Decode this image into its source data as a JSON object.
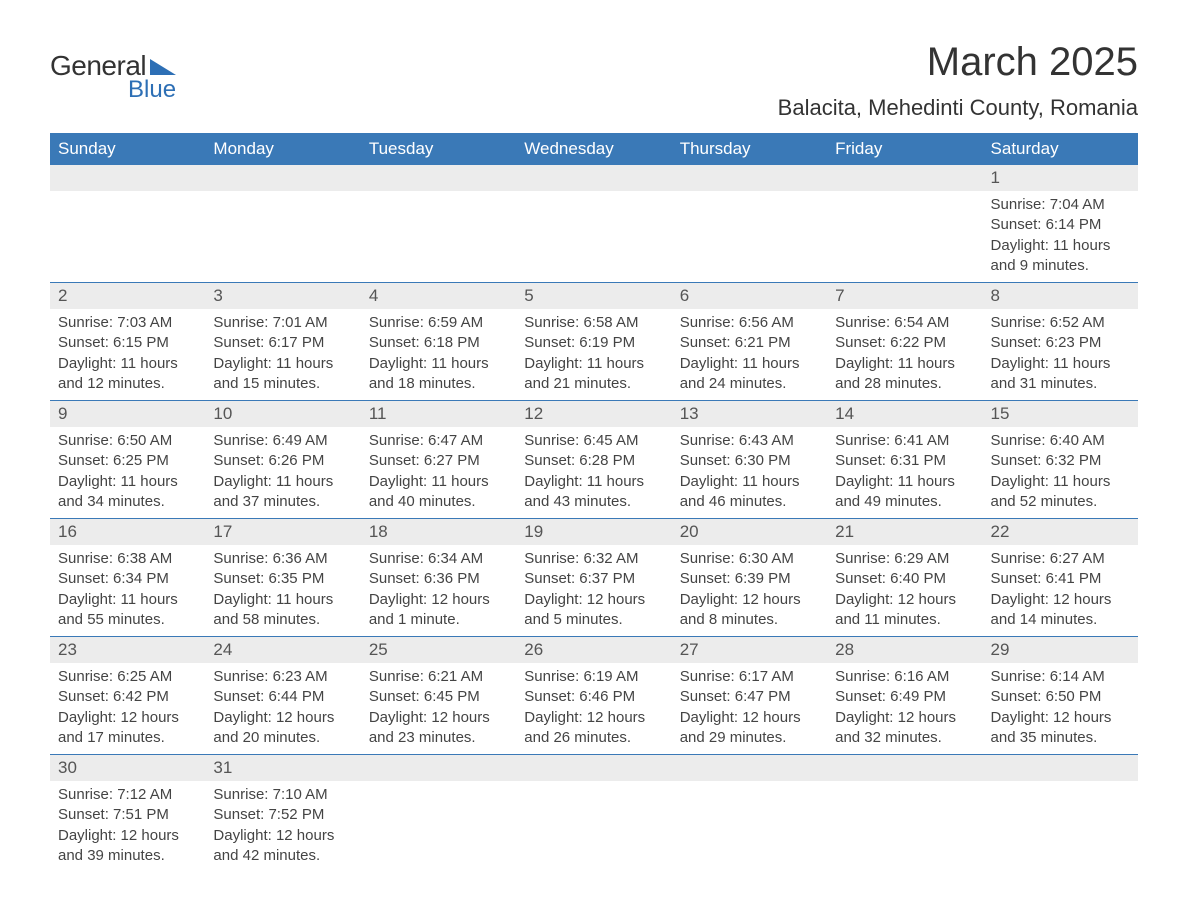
{
  "logo": {
    "text1": "General",
    "text2": "Blue",
    "triangle_color": "#2d6fb5"
  },
  "title": "March 2025",
  "location": "Balacita, Mehedinti County, Romania",
  "colors": {
    "header_bg": "#3a79b7",
    "header_text": "#ffffff",
    "daynum_bg": "#ececec",
    "border": "#3a79b7",
    "text": "#444444"
  },
  "typography": {
    "title_fontsize": 40,
    "location_fontsize": 22,
    "header_fontsize": 17,
    "daynum_fontsize": 17,
    "body_fontsize": 15
  },
  "headers": [
    "Sunday",
    "Monday",
    "Tuesday",
    "Wednesday",
    "Thursday",
    "Friday",
    "Saturday"
  ],
  "weeks": [
    [
      null,
      null,
      null,
      null,
      null,
      null,
      {
        "n": "1",
        "sunrise": "Sunrise: 7:04 AM",
        "sunset": "Sunset: 6:14 PM",
        "daylight": "Daylight: 11 hours and 9 minutes."
      }
    ],
    [
      {
        "n": "2",
        "sunrise": "Sunrise: 7:03 AM",
        "sunset": "Sunset: 6:15 PM",
        "daylight": "Daylight: 11 hours and 12 minutes."
      },
      {
        "n": "3",
        "sunrise": "Sunrise: 7:01 AM",
        "sunset": "Sunset: 6:17 PM",
        "daylight": "Daylight: 11 hours and 15 minutes."
      },
      {
        "n": "4",
        "sunrise": "Sunrise: 6:59 AM",
        "sunset": "Sunset: 6:18 PM",
        "daylight": "Daylight: 11 hours and 18 minutes."
      },
      {
        "n": "5",
        "sunrise": "Sunrise: 6:58 AM",
        "sunset": "Sunset: 6:19 PM",
        "daylight": "Daylight: 11 hours and 21 minutes."
      },
      {
        "n": "6",
        "sunrise": "Sunrise: 6:56 AM",
        "sunset": "Sunset: 6:21 PM",
        "daylight": "Daylight: 11 hours and 24 minutes."
      },
      {
        "n": "7",
        "sunrise": "Sunrise: 6:54 AM",
        "sunset": "Sunset: 6:22 PM",
        "daylight": "Daylight: 11 hours and 28 minutes."
      },
      {
        "n": "8",
        "sunrise": "Sunrise: 6:52 AM",
        "sunset": "Sunset: 6:23 PM",
        "daylight": "Daylight: 11 hours and 31 minutes."
      }
    ],
    [
      {
        "n": "9",
        "sunrise": "Sunrise: 6:50 AM",
        "sunset": "Sunset: 6:25 PM",
        "daylight": "Daylight: 11 hours and 34 minutes."
      },
      {
        "n": "10",
        "sunrise": "Sunrise: 6:49 AM",
        "sunset": "Sunset: 6:26 PM",
        "daylight": "Daylight: 11 hours and 37 minutes."
      },
      {
        "n": "11",
        "sunrise": "Sunrise: 6:47 AM",
        "sunset": "Sunset: 6:27 PM",
        "daylight": "Daylight: 11 hours and 40 minutes."
      },
      {
        "n": "12",
        "sunrise": "Sunrise: 6:45 AM",
        "sunset": "Sunset: 6:28 PM",
        "daylight": "Daylight: 11 hours and 43 minutes."
      },
      {
        "n": "13",
        "sunrise": "Sunrise: 6:43 AM",
        "sunset": "Sunset: 6:30 PM",
        "daylight": "Daylight: 11 hours and 46 minutes."
      },
      {
        "n": "14",
        "sunrise": "Sunrise: 6:41 AM",
        "sunset": "Sunset: 6:31 PM",
        "daylight": "Daylight: 11 hours and 49 minutes."
      },
      {
        "n": "15",
        "sunrise": "Sunrise: 6:40 AM",
        "sunset": "Sunset: 6:32 PM",
        "daylight": "Daylight: 11 hours and 52 minutes."
      }
    ],
    [
      {
        "n": "16",
        "sunrise": "Sunrise: 6:38 AM",
        "sunset": "Sunset: 6:34 PM",
        "daylight": "Daylight: 11 hours and 55 minutes."
      },
      {
        "n": "17",
        "sunrise": "Sunrise: 6:36 AM",
        "sunset": "Sunset: 6:35 PM",
        "daylight": "Daylight: 11 hours and 58 minutes."
      },
      {
        "n": "18",
        "sunrise": "Sunrise: 6:34 AM",
        "sunset": "Sunset: 6:36 PM",
        "daylight": "Daylight: 12 hours and 1 minute."
      },
      {
        "n": "19",
        "sunrise": "Sunrise: 6:32 AM",
        "sunset": "Sunset: 6:37 PM",
        "daylight": "Daylight: 12 hours and 5 minutes."
      },
      {
        "n": "20",
        "sunrise": "Sunrise: 6:30 AM",
        "sunset": "Sunset: 6:39 PM",
        "daylight": "Daylight: 12 hours and 8 minutes."
      },
      {
        "n": "21",
        "sunrise": "Sunrise: 6:29 AM",
        "sunset": "Sunset: 6:40 PM",
        "daylight": "Daylight: 12 hours and 11 minutes."
      },
      {
        "n": "22",
        "sunrise": "Sunrise: 6:27 AM",
        "sunset": "Sunset: 6:41 PM",
        "daylight": "Daylight: 12 hours and 14 minutes."
      }
    ],
    [
      {
        "n": "23",
        "sunrise": "Sunrise: 6:25 AM",
        "sunset": "Sunset: 6:42 PM",
        "daylight": "Daylight: 12 hours and 17 minutes."
      },
      {
        "n": "24",
        "sunrise": "Sunrise: 6:23 AM",
        "sunset": "Sunset: 6:44 PM",
        "daylight": "Daylight: 12 hours and 20 minutes."
      },
      {
        "n": "25",
        "sunrise": "Sunrise: 6:21 AM",
        "sunset": "Sunset: 6:45 PM",
        "daylight": "Daylight: 12 hours and 23 minutes."
      },
      {
        "n": "26",
        "sunrise": "Sunrise: 6:19 AM",
        "sunset": "Sunset: 6:46 PM",
        "daylight": "Daylight: 12 hours and 26 minutes."
      },
      {
        "n": "27",
        "sunrise": "Sunrise: 6:17 AM",
        "sunset": "Sunset: 6:47 PM",
        "daylight": "Daylight: 12 hours and 29 minutes."
      },
      {
        "n": "28",
        "sunrise": "Sunrise: 6:16 AM",
        "sunset": "Sunset: 6:49 PM",
        "daylight": "Daylight: 12 hours and 32 minutes."
      },
      {
        "n": "29",
        "sunrise": "Sunrise: 6:14 AM",
        "sunset": "Sunset: 6:50 PM",
        "daylight": "Daylight: 12 hours and 35 minutes."
      }
    ],
    [
      {
        "n": "30",
        "sunrise": "Sunrise: 7:12 AM",
        "sunset": "Sunset: 7:51 PM",
        "daylight": "Daylight: 12 hours and 39 minutes."
      },
      {
        "n": "31",
        "sunrise": "Sunrise: 7:10 AM",
        "sunset": "Sunset: 7:52 PM",
        "daylight": "Daylight: 12 hours and 42 minutes."
      },
      null,
      null,
      null,
      null,
      null
    ]
  ]
}
